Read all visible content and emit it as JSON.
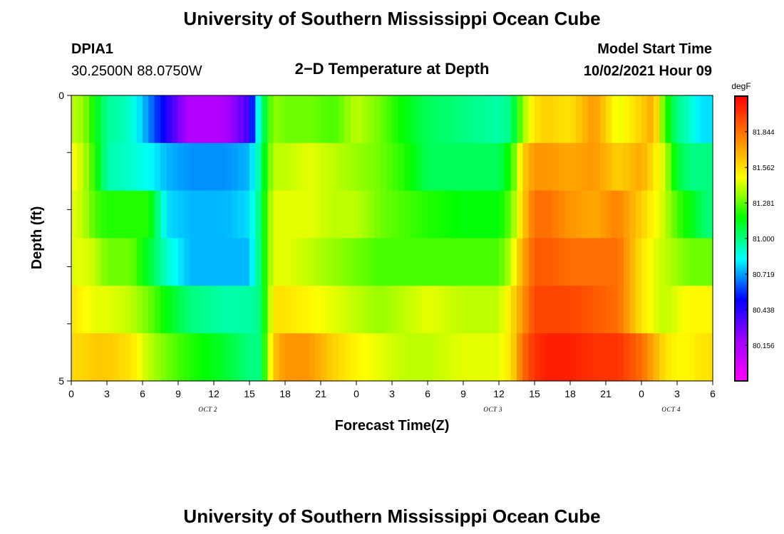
{
  "page": {
    "top_title": "University of Southern Mississippi Ocean Cube",
    "bottom_title": "University of Southern Mississippi Ocean Cube",
    "station_id": "DPIA1",
    "station_coords": "30.2500N  88.0750W",
    "model_start_label": "Model Start Time",
    "model_start_value": "10/02/2021 Hour 09"
  },
  "chart_data": {
    "type": "heatmap",
    "title": "2−D Temperature at Depth",
    "xlabel": "Forecast Time(Z)",
    "ylabel": "Depth (ft)",
    "x_hours": [
      0,
      54
    ],
    "x_tick_labels": [
      "0",
      "3",
      "6",
      "9",
      "12",
      "15",
      "18",
      "21",
      "0",
      "3",
      "6",
      "9",
      "12",
      "15",
      "18",
      "21",
      "0",
      "3",
      "6"
    ],
    "x_date_labels": [
      {
        "label": "OCT 2",
        "hour": 11.5
      },
      {
        "label": "OCT 3",
        "hour": 35.5
      },
      {
        "label": "OCT 4",
        "hour": 50.5
      }
    ],
    "y_range": [
      0,
      5
    ],
    "y_tick_labels": [
      "0",
      "5"
    ],
    "colorbar": {
      "unit": "degF",
      "min": 79.875,
      "max": 82.125,
      "tick_values": [
        "81.844",
        "81.562",
        "81.281",
        "81.000",
        "80.719",
        "80.438",
        "80.156"
      ],
      "colors": [
        "#ff00ff",
        "#a000ff",
        "#0000ff",
        "#00ffff",
        "#00ff00",
        "#ffff00",
        "#ff8000",
        "#ff0000"
      ]
    },
    "depth_rows": [
      "0-1",
      "1-2",
      "2-3",
      "3-4",
      "4-5"
    ],
    "time_keys": [
      0,
      1,
      2,
      3,
      5,
      6.5,
      8,
      10,
      13,
      15,
      15.8,
      16.5,
      17,
      18,
      20,
      22,
      24,
      26,
      28,
      30,
      33,
      36,
      37,
      38,
      39,
      40,
      42,
      44,
      46,
      48,
      49,
      50,
      51,
      52,
      53,
      54
    ],
    "values": [
      [
        81.4,
        81.35,
        81.15,
        80.98,
        80.9,
        80.7,
        80.45,
        80.12,
        80.15,
        80.4,
        80.9,
        81.2,
        81.35,
        81.3,
        81.3,
        81.25,
        81.4,
        81.3,
        81.15,
        81.05,
        81.0,
        80.95,
        81.0,
        81.35,
        81.55,
        81.6,
        81.55,
        81.75,
        81.45,
        81.6,
        81.7,
        81.2,
        81.0,
        80.9,
        80.8,
        80.8
      ],
      [
        81.5,
        81.4,
        81.2,
        80.95,
        80.9,
        80.85,
        80.75,
        80.7,
        80.7,
        80.75,
        80.95,
        81.25,
        81.4,
        81.4,
        81.45,
        81.4,
        81.35,
        81.3,
        81.2,
        81.05,
        81.05,
        81.05,
        81.2,
        81.6,
        81.75,
        81.75,
        81.7,
        81.75,
        81.6,
        81.7,
        81.55,
        81.4,
        81.1,
        81.0,
        81.0,
        81.0
      ],
      [
        81.45,
        81.4,
        81.25,
        81.2,
        81.2,
        81.2,
        80.8,
        80.75,
        80.75,
        80.8,
        81.0,
        81.3,
        81.45,
        81.45,
        81.45,
        81.4,
        81.4,
        81.3,
        81.25,
        81.2,
        81.15,
        81.15,
        81.3,
        81.6,
        81.85,
        81.85,
        81.75,
        81.7,
        81.8,
        81.6,
        81.5,
        81.4,
        81.25,
        81.15,
        81.05,
        81.0
      ],
      [
        81.45,
        81.45,
        81.4,
        81.3,
        81.3,
        81.1,
        80.9,
        80.75,
        80.75,
        80.75,
        81.0,
        81.3,
        81.45,
        81.45,
        81.4,
        81.35,
        81.3,
        81.25,
        81.25,
        81.25,
        81.25,
        81.25,
        81.4,
        81.7,
        81.9,
        81.9,
        81.85,
        81.85,
        81.85,
        81.55,
        81.45,
        81.4,
        81.35,
        81.3,
        81.3,
        81.3
      ],
      [
        81.55,
        81.5,
        81.45,
        81.45,
        81.4,
        81.3,
        81.15,
        81.0,
        80.95,
        80.95,
        81.0,
        81.3,
        81.55,
        81.55,
        81.5,
        81.45,
        81.4,
        81.35,
        81.4,
        81.45,
        81.4,
        81.4,
        81.55,
        81.75,
        81.95,
        81.95,
        81.95,
        81.9,
        81.85,
        81.55,
        81.45,
        81.4,
        81.45,
        81.5,
        81.5,
        81.5
      ],
      [
        81.58,
        81.58,
        81.62,
        81.62,
        81.55,
        81.4,
        81.3,
        81.2,
        81.1,
        81.0,
        81.0,
        81.35,
        81.62,
        81.75,
        81.75,
        81.6,
        81.5,
        81.45,
        81.4,
        81.4,
        81.45,
        81.45,
        81.55,
        81.85,
        82.0,
        82.05,
        82.05,
        82.0,
        82.0,
        81.85,
        81.7,
        81.55,
        81.5,
        81.5,
        81.55,
        81.55
      ]
    ]
  }
}
